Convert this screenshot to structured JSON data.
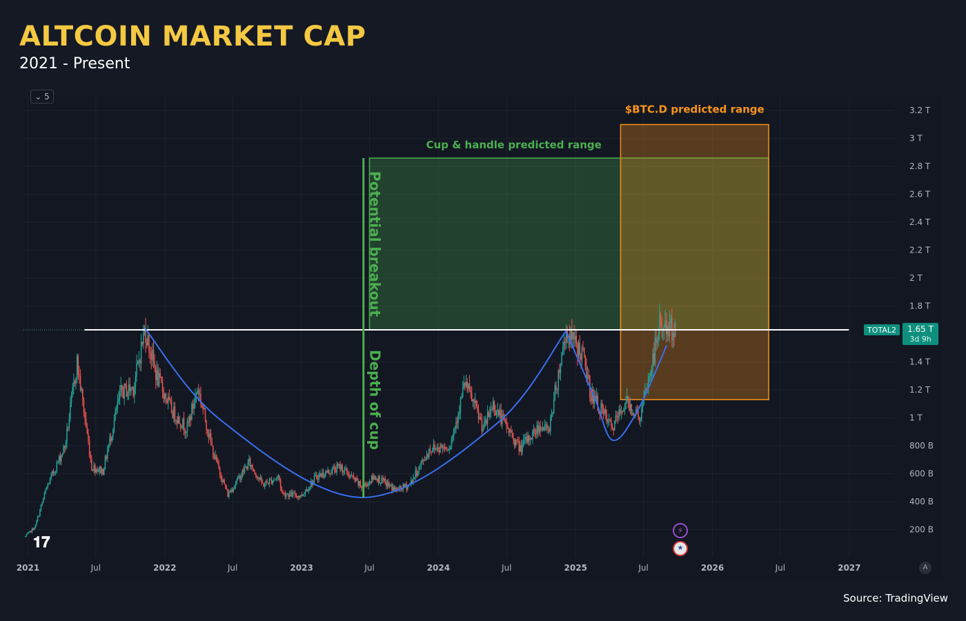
{
  "header": {
    "title": "ALTCOIN MARKET CAP",
    "subtitle": "2021 - Present"
  },
  "footer": {
    "source": "Source: TradingView"
  },
  "toolbar": {
    "interval_label": "⌄ 5",
    "scale_label": "A",
    "logo": "TV"
  },
  "icons": {
    "event_bolt": "bolt-icon",
    "event_flag": "us-flag-icon"
  },
  "colors": {
    "background": "#131722",
    "up": "#26a69a",
    "down": "#ef5350",
    "cup_curve": "#3a6ff0",
    "green_zone": "#4caf50",
    "orange_zone": "#f7931a",
    "resistance": "#ffffff",
    "title": "#f4c842"
  },
  "chart_data": {
    "type": "candlestick",
    "symbol": "TOTAL2",
    "last_price_label": "1.65 T",
    "countdown_label": "3d 9h",
    "y_unit": "USD (T = trillion, B = billion)",
    "ylim": [
      0,
      3.3
    ],
    "y_ticks": [
      {
        "v": 0.2,
        "label": "200 B"
      },
      {
        "v": 0.4,
        "label": "400 B"
      },
      {
        "v": 0.6,
        "label": "600 B"
      },
      {
        "v": 0.8,
        "label": "800 B"
      },
      {
        "v": 1.0,
        "label": "1 T"
      },
      {
        "v": 1.2,
        "label": "1.2 T"
      },
      {
        "v": 1.4,
        "label": "1.4 T"
      },
      {
        "v": 1.8,
        "label": "1.8 T"
      },
      {
        "v": 2.0,
        "label": "2 T"
      },
      {
        "v": 2.2,
        "label": "2.2 T"
      },
      {
        "v": 2.4,
        "label": "2.4 T"
      },
      {
        "v": 2.6,
        "label": "2.6 T"
      },
      {
        "v": 2.8,
        "label": "2.8 T"
      },
      {
        "v": 3.0,
        "label": "3 T"
      },
      {
        "v": 3.2,
        "label": "3.2 T"
      }
    ],
    "xlim": [
      "2020-12-20",
      "2027-05-01"
    ],
    "x_ticks": [
      {
        "date": "2021-01-01",
        "label": "2021",
        "bold": true
      },
      {
        "date": "2021-07-01",
        "label": "Jul",
        "bold": false
      },
      {
        "date": "2022-01-01",
        "label": "2022",
        "bold": true
      },
      {
        "date": "2022-07-01",
        "label": "Jul",
        "bold": false
      },
      {
        "date": "2023-01-01",
        "label": "2023",
        "bold": true
      },
      {
        "date": "2023-07-01",
        "label": "Jul",
        "bold": false
      },
      {
        "date": "2024-01-01",
        "label": "2024",
        "bold": true
      },
      {
        "date": "2024-07-01",
        "label": "Jul",
        "bold": false
      },
      {
        "date": "2025-01-01",
        "label": "2025",
        "bold": true
      },
      {
        "date": "2025-07-01",
        "label": "Jul",
        "bold": false
      },
      {
        "date": "2026-01-01",
        "label": "2026",
        "bold": true
      },
      {
        "date": "2026-07-01",
        "label": "Jul",
        "bold": false
      },
      {
        "date": "2027-01-01",
        "label": "2027",
        "bold": true
      }
    ],
    "price_path": [
      [
        "2020-12-25",
        0.15
      ],
      [
        "2021-01-20",
        0.22
      ],
      [
        "2021-02-20",
        0.5
      ],
      [
        "2021-04-10",
        0.8
      ],
      [
        "2021-05-12",
        1.4
      ],
      [
        "2021-06-20",
        0.65
      ],
      [
        "2021-07-20",
        0.62
      ],
      [
        "2021-09-05",
        1.18
      ],
      [
        "2021-10-10",
        1.22
      ],
      [
        "2021-11-09",
        1.64
      ],
      [
        "2021-12-10",
        1.3
      ],
      [
        "2022-01-20",
        1.05
      ],
      [
        "2022-03-01",
        0.92
      ],
      [
        "2022-03-30",
        1.22
      ],
      [
        "2022-05-10",
        0.75
      ],
      [
        "2022-06-18",
        0.45
      ],
      [
        "2022-08-14",
        0.68
      ],
      [
        "2022-09-20",
        0.52
      ],
      [
        "2022-11-01",
        0.58
      ],
      [
        "2022-11-10",
        0.46
      ],
      [
        "2022-12-30",
        0.44
      ],
      [
        "2023-02-10",
        0.58
      ],
      [
        "2023-04-15",
        0.65
      ],
      [
        "2023-06-12",
        0.5
      ],
      [
        "2023-07-15",
        0.58
      ],
      [
        "2023-09-11",
        0.48
      ],
      [
        "2023-10-15",
        0.52
      ],
      [
        "2023-12-10",
        0.78
      ],
      [
        "2024-02-01",
        0.8
      ],
      [
        "2024-03-12",
        1.25
      ],
      [
        "2024-05-01",
        0.92
      ],
      [
        "2024-05-25",
        1.1
      ],
      [
        "2024-08-05",
        0.78
      ],
      [
        "2024-09-30",
        0.95
      ],
      [
        "2024-10-20",
        0.9
      ],
      [
        "2024-12-06",
        1.62
      ],
      [
        "2025-01-20",
        1.45
      ],
      [
        "2025-02-10",
        1.18
      ],
      [
        "2025-04-08",
        0.92
      ],
      [
        "2025-05-15",
        1.12
      ],
      [
        "2025-06-22",
        1.0
      ],
      [
        "2025-07-25",
        1.4
      ],
      [
        "2025-08-14",
        1.68
      ],
      [
        "2025-09-05",
        1.62
      ],
      [
        "2025-09-25",
        1.65
      ]
    ],
    "resistance": {
      "value": 1.63,
      "from": "2021-06-01",
      "to": "2026-12-31"
    },
    "cup_curves": [
      {
        "name": "",
        "points": [
          [
            "2021-11-09",
            1.64
          ],
          [
            "2022-06-01",
            0.98
          ],
          [
            "2023-06-10",
            0.43
          ],
          [
            "2024-06-01",
            0.95
          ],
          [
            "2024-12-06",
            1.62
          ]
        ]
      },
      {
        "name": "",
        "points": [
          [
            "2024-12-06",
            1.62
          ],
          [
            "2025-02-20",
            1.15
          ],
          [
            "2025-04-10",
            0.84
          ],
          [
            "2025-06-15",
            1.05
          ],
          [
            "2025-09-01",
            1.52
          ]
        ]
      }
    ],
    "annotations": {
      "breakout_line": {
        "date": "2023-06-15",
        "from": 0.43,
        "to": 2.86
      },
      "breakout_label": "Potential breakout",
      "depth_label": "Depth of cup",
      "cup_handle_zone": {
        "label": "Cup & handle predicted range",
        "from": "2023-07-01",
        "to": "2026-05-31",
        "low": 1.63,
        "high": 2.86
      },
      "btcd_zone": {
        "label": "$BTC.D predicted range",
        "from": "2025-05-01",
        "to": "2026-05-31",
        "low": 1.13,
        "high": 3.1
      }
    }
  }
}
